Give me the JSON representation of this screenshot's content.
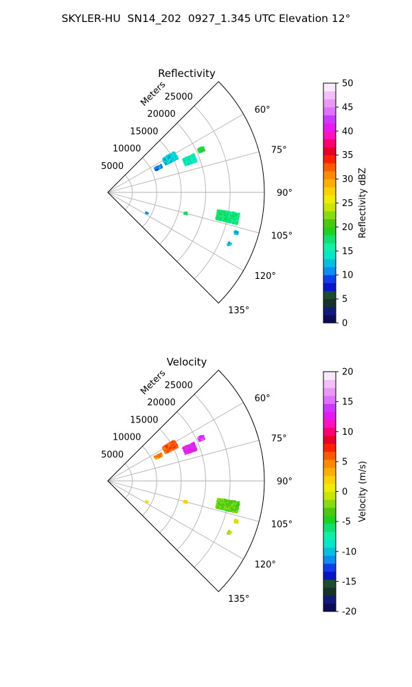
{
  "title": "SKYLER-HU  SN14_202  0927_1.345 UTC Elevation 12°",
  "range_unit_label": "Meters",
  "chart_data": [
    {
      "type": "polar-sector",
      "title": "Reflectivity",
      "azimuth_range_deg": [
        45,
        135
      ],
      "azimuth_ticks": [
        "60°",
        "75°",
        "90°",
        "105°",
        "120°",
        "135°"
      ],
      "azimuth_tick_values": [
        60,
        75,
        90,
        105,
        120,
        135
      ],
      "range_max_m": 32000,
      "range_ticks": [
        "5000",
        "10000",
        "15000",
        "20000",
        "25000"
      ],
      "range_tick_values": [
        5000,
        10000,
        15000,
        20000,
        25000
      ],
      "grid": true,
      "colorbar": {
        "label": "Reflectivity dBZ",
        "min": 0,
        "max": 50,
        "ticks": [
          "0",
          "5",
          "10",
          "15",
          "20",
          "25",
          "30",
          "35",
          "40",
          "45",
          "50"
        ],
        "tick_values": [
          0,
          5,
          10,
          15,
          20,
          25,
          30,
          35,
          40,
          45,
          50
        ],
        "colors": [
          "#0b0b5c",
          "#101a7a",
          "#173327",
          "#1b4d2e",
          "#0a14c8",
          "#0c3fe8",
          "#0a8ef0",
          "#06bfe0",
          "#06e6c8",
          "#0ef0a8",
          "#10e070",
          "#1ed020",
          "#4cc80e",
          "#86dc10",
          "#c8e600",
          "#f0ec00",
          "#ffd000",
          "#ffae00",
          "#ff8a00",
          "#ff5a00",
          "#ff2000",
          "#e80028",
          "#ff0070",
          "#ff10c0",
          "#e818f0",
          "#cc38ff",
          "#e070ff",
          "#ea98f4",
          "#f2c0f6",
          "#fae8fc"
        ]
      },
      "clusters": [
        {
          "azimuth_deg": 65.5,
          "range_m": 21000,
          "span_deg": 2.5,
          "span_m": 1200,
          "value": 19
        },
        {
          "azimuth_deg": 68.5,
          "range_m": 18000,
          "span_deg": 5,
          "span_m": 2500,
          "value": 15
        },
        {
          "azimuth_deg": 61.5,
          "range_m": 14500,
          "span_deg": 6,
          "span_m": 2800,
          "value": 13
        },
        {
          "azimuth_deg": 64.0,
          "range_m": 11500,
          "span_deg": 3,
          "span_m": 1500,
          "value": 11
        },
        {
          "azimuth_deg": 101.5,
          "range_m": 25000,
          "span_deg": 5,
          "span_m": 4500,
          "value": 17
        },
        {
          "azimuth_deg": 105.0,
          "range_m": 16500,
          "span_deg": 1.5,
          "span_m": 600,
          "value": 18
        },
        {
          "azimuth_deg": 107.5,
          "range_m": 27500,
          "span_deg": 1.5,
          "span_m": 700,
          "value": 13
        },
        {
          "azimuth_deg": 113.0,
          "range_m": 27000,
          "span_deg": 1.5,
          "span_m": 600,
          "value": 12
        },
        {
          "azimuth_deg": 118.0,
          "range_m": 9000,
          "span_deg": 1.5,
          "span_m": 500,
          "value": 12
        }
      ]
    },
    {
      "type": "polar-sector",
      "title": "Velocity",
      "azimuth_range_deg": [
        45,
        135
      ],
      "azimuth_ticks": [
        "60°",
        "75°",
        "90°",
        "105°",
        "120°",
        "135°"
      ],
      "azimuth_tick_values": [
        60,
        75,
        90,
        105,
        120,
        135
      ],
      "range_max_m": 32000,
      "range_ticks": [
        "5000",
        "10000",
        "15000",
        "20000",
        "25000"
      ],
      "range_tick_values": [
        5000,
        10000,
        15000,
        20000,
        25000
      ],
      "grid": true,
      "colorbar": {
        "label": "Velocity (m/s)",
        "min": -20,
        "max": 20,
        "ticks": [
          "-20",
          "-15",
          "-10",
          "-5",
          "0",
          "5",
          "10",
          "15",
          "20"
        ],
        "tick_values": [
          -20,
          -15,
          -10,
          -5,
          0,
          5,
          10,
          15,
          20
        ],
        "colors": [
          "#0b0b5c",
          "#101a7a",
          "#173327",
          "#1b4d2e",
          "#0a14c8",
          "#0c3fe8",
          "#0a8ef0",
          "#06bfe0",
          "#06e6c8",
          "#0ef0a8",
          "#10e070",
          "#1ed020",
          "#4cc80e",
          "#86dc10",
          "#c8e600",
          "#f0ec00",
          "#ffd000",
          "#ffae00",
          "#ff8a00",
          "#ff5a00",
          "#ff2000",
          "#e80028",
          "#ff0070",
          "#ff10c0",
          "#e818f0",
          "#cc38ff",
          "#e070ff",
          "#ea98f4",
          "#f2c0f6",
          "#fae8fc"
        ]
      },
      "clusters": [
        {
          "azimuth_deg": 65.5,
          "range_m": 21000,
          "span_deg": 2.5,
          "span_m": 1200,
          "value": 14
        },
        {
          "azimuth_deg": 68.5,
          "range_m": 18000,
          "span_deg": 5,
          "span_m": 2500,
          "value": 13
        },
        {
          "azimuth_deg": 61.5,
          "range_m": 14500,
          "span_deg": 6,
          "span_m": 2800,
          "value": 6
        },
        {
          "azimuth_deg": 64.0,
          "range_m": 11500,
          "span_deg": 3,
          "span_m": 1500,
          "value": 5
        },
        {
          "azimuth_deg": 101.5,
          "range_m": 25000,
          "span_deg": 5,
          "span_m": 4500,
          "value": -3
        },
        {
          "azimuth_deg": 105.0,
          "range_m": 16500,
          "span_deg": 1.5,
          "span_m": 600,
          "value": 2
        },
        {
          "azimuth_deg": 107.5,
          "range_m": 27500,
          "span_deg": 1.5,
          "span_m": 700,
          "value": 1
        },
        {
          "azimuth_deg": 113.0,
          "range_m": 27000,
          "span_deg": 1.5,
          "span_m": 600,
          "value": -2
        },
        {
          "azimuth_deg": 118.0,
          "range_m": 9000,
          "span_deg": 1.5,
          "span_m": 500,
          "value": 2
        }
      ]
    }
  ]
}
